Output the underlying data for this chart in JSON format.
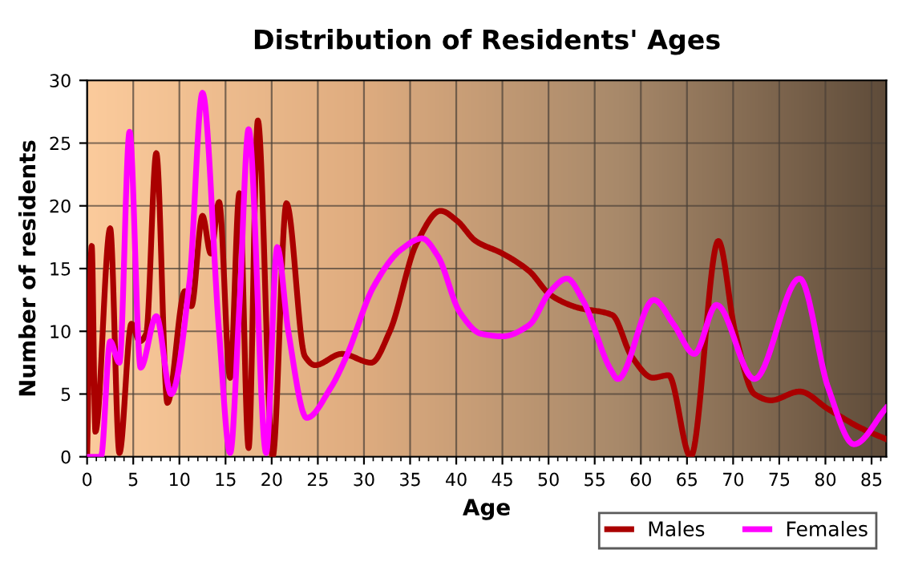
{
  "chart_data": {
    "type": "line",
    "title": "Distribution of Residents' Ages",
    "xlabel": "Age",
    "ylabel": "Number of residents",
    "xlim": [
      0,
      86.6
    ],
    "xticks": [
      0,
      5,
      10,
      15,
      20,
      25,
      30,
      35,
      40,
      45,
      50,
      55,
      60,
      65,
      70,
      75,
      80,
      85
    ],
    "ylim": [
      0,
      30
    ],
    "yticks": [
      0,
      5,
      10,
      15,
      20,
      25,
      30
    ],
    "grid": true,
    "legend": "bottom right",
    "marker": "none",
    "line_style": "solid",
    "series": [
      {
        "name": "Males",
        "color": "#aa0000",
        "x": [
          0,
          0.5,
          0.9,
          2.5,
          3.5,
          4.8,
          5.7,
          6.4,
          7.5,
          8.7,
          10.6,
          11.3,
          12.5,
          13.4,
          14.3,
          15.5,
          16.5,
          17.5,
          18.5,
          20.1,
          21.6,
          23.6,
          24.7,
          27.6,
          30.8,
          32.8,
          35.7,
          38.3,
          40.1,
          42.1,
          45,
          47.9,
          50.2,
          53.1,
          56.9,
          59,
          61.3,
          63,
          65.4,
          68.4,
          70.2,
          72.3,
          74.1,
          77.2,
          80.3,
          83.8,
          86.6
        ],
        "values": [
          0,
          16.8,
          2,
          18.2,
          0.3,
          10.6,
          9.2,
          9.8,
          24.2,
          4.3,
          13.2,
          12,
          19.2,
          16.2,
          20.3,
          6.3,
          21,
          0.7,
          26.8,
          0,
          20.2,
          8,
          7.3,
          8.2,
          7.5,
          10,
          17,
          19.6,
          18.8,
          17.2,
          16.2,
          14.8,
          12.9,
          11.9,
          11.3,
          8,
          6.3,
          6.5,
          0,
          17.2,
          10,
          5,
          4.5,
          5.2,
          3.8,
          2.3,
          1.4
        ]
      },
      {
        "name": "Females",
        "color": "#ff00ff",
        "x": [
          0,
          1,
          1.5,
          2.5,
          3.5,
          4.6,
          5.8,
          7.5,
          9.1,
          11.1,
          12.5,
          14.3,
          15.5,
          16.5,
          17.5,
          19.4,
          20.6,
          21.8,
          23.8,
          26.4,
          28.1,
          31,
          34,
          36.3,
          38,
          40.4,
          42.7,
          45,
          47.9,
          50.2,
          52,
          53.7,
          56.7,
          57.5,
          61.4,
          63.6,
          65.8,
          68.2,
          72.3,
          77.2,
          80.3,
          83.1,
          86.6
        ],
        "values": [
          0,
          0,
          0,
          9.2,
          7.5,
          25.9,
          7.1,
          11.2,
          5,
          14,
          29,
          10,
          0.3,
          12,
          26.1,
          0.3,
          16.7,
          10,
          3.1,
          5.5,
          8,
          13.5,
          16.5,
          17.4,
          16,
          11.5,
          9.8,
          9.6,
          10.5,
          13.2,
          14.2,
          12.5,
          7,
          6.2,
          12.5,
          10.5,
          8.2,
          12.1,
          6.2,
          14.2,
          5.5,
          1,
          3.9
        ]
      }
    ]
  }
}
